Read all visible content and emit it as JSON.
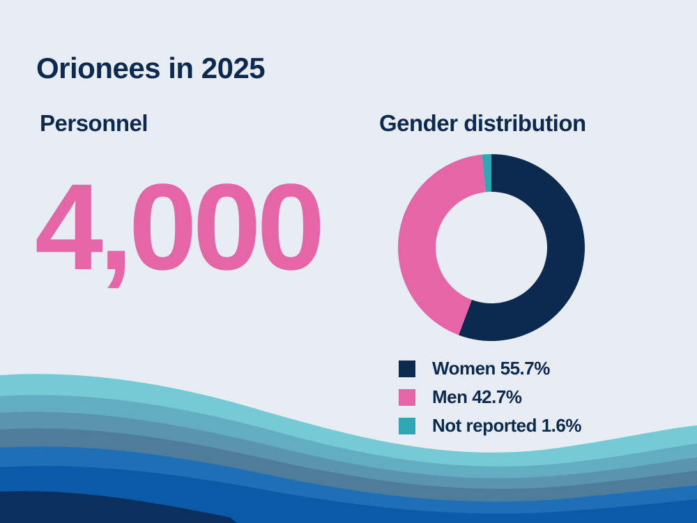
{
  "page": {
    "title": "Orionees in 2025",
    "personnel_label": "Personnel",
    "personnel_value": "4,000",
    "gender_label": "Gender distribution"
  },
  "chart_data": {
    "type": "pie",
    "title": "Gender distribution",
    "series": [
      {
        "name": "Women",
        "value": 55.7,
        "label": "Women 55.7%",
        "color": "#0c2a4f"
      },
      {
        "name": "Men",
        "value": 42.7,
        "label": "Men 42.7%",
        "color": "#e466a7"
      },
      {
        "name": "Not reported",
        "value": 1.6,
        "label": "Not reported 1.6%",
        "color": "#2ea6b3"
      }
    ],
    "donut": true,
    "legend": "bottom"
  },
  "colors": {
    "background": "#e8edf4",
    "text": "#0c2a4f",
    "accent_pink": "#e466a7",
    "wave_teal": "#74cbd6",
    "wave_blue": "#0a5aa8"
  }
}
